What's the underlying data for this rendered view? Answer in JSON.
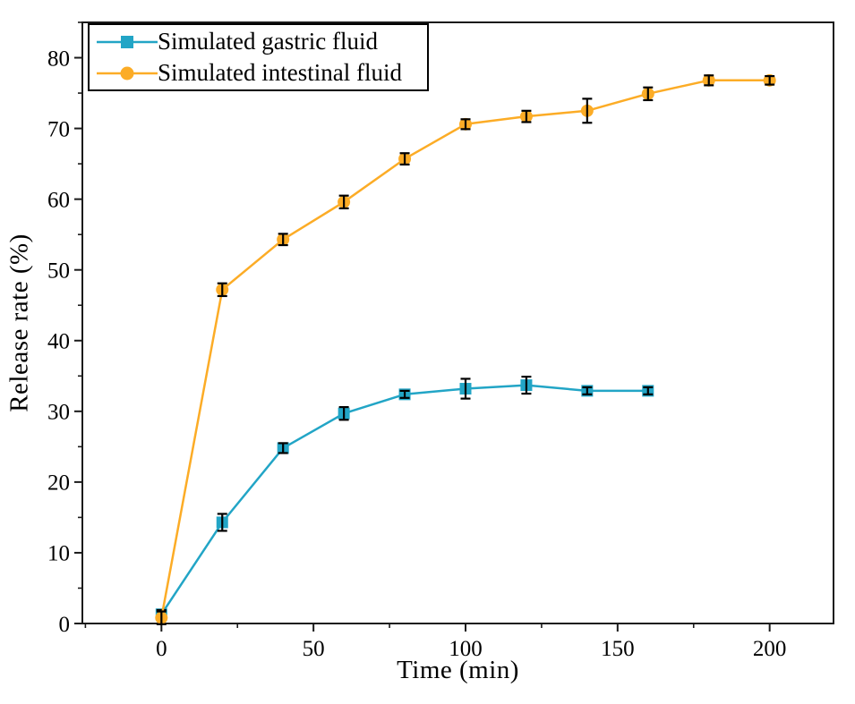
{
  "figure": {
    "background": "#ffffff"
  },
  "chart_data": {
    "type": "line",
    "title": "",
    "xlabel": "Time (min)",
    "ylabel": "Release rate (%)",
    "xlim": [
      -26,
      221
    ],
    "ylim": [
      0,
      85
    ],
    "x_major_ticks": [
      0,
      50,
      100,
      150,
      200
    ],
    "x_minor_step": 25,
    "y_major_ticks": [
      0,
      10,
      20,
      30,
      40,
      50,
      60,
      70,
      80
    ],
    "y_minor_step": 5,
    "grid": false,
    "frame": true,
    "legend_position": "top-left",
    "axis_color": "#1a1a1a",
    "error_bar_color": "#000000",
    "series": [
      {
        "name": "Simulated gastric fluid",
        "color": "#22A5C6",
        "marker": "square",
        "x": [
          0,
          20,
          40,
          60,
          80,
          100,
          120,
          140,
          160
        ],
        "y": [
          1.3,
          14.3,
          24.8,
          29.7,
          32.4,
          33.2,
          33.7,
          32.9,
          32.9
        ],
        "yerr": [
          0.6,
          1.2,
          0.7,
          0.9,
          0.5,
          1.4,
          1.2,
          0.5,
          0.5
        ]
      },
      {
        "name": "Simulated intestinal fluid",
        "color": "#FCAC26",
        "marker": "circle",
        "x": [
          0,
          20,
          40,
          60,
          80,
          100,
          120,
          140,
          160,
          180,
          200
        ],
        "y": [
          0.8,
          47.2,
          54.3,
          59.6,
          65.7,
          70.6,
          71.7,
          72.5,
          74.9,
          76.8,
          76.8
        ],
        "yerr": [
          0.9,
          0.9,
          0.8,
          0.9,
          0.8,
          0.7,
          0.8,
          1.7,
          0.9,
          0.7,
          0.6
        ]
      }
    ]
  }
}
